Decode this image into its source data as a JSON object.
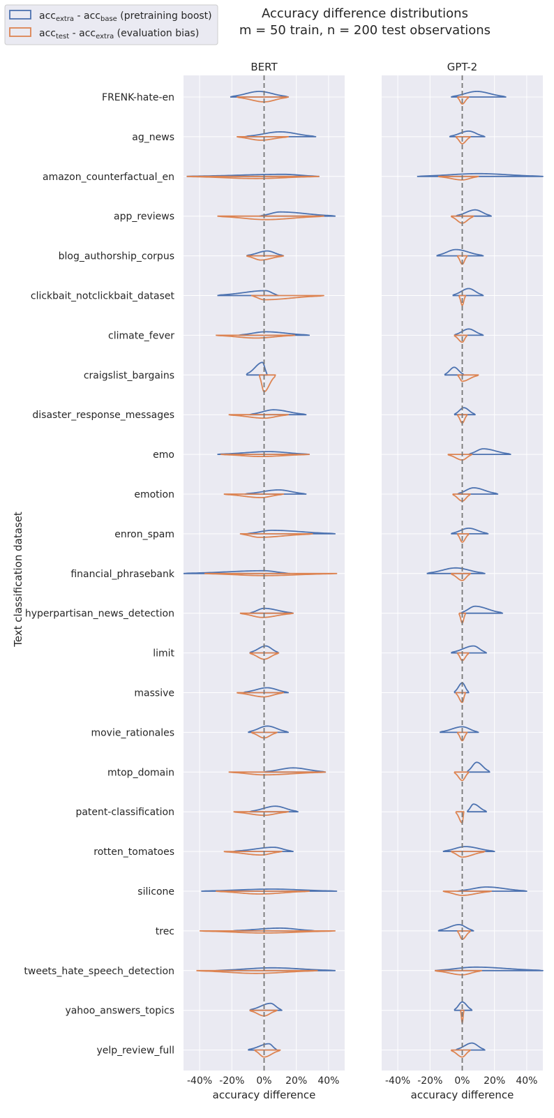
{
  "chart_data": {
    "type": "violin",
    "title_line1": "Accuracy difference distributions",
    "title_line2": "m = 50 train, n = 200 test observations",
    "ylabel": "Text classification dataset",
    "xlabel": "accuracy difference",
    "xlim": [
      -50,
      50
    ],
    "xticks": [
      -40,
      -20,
      0,
      20,
      40
    ],
    "xtick_labels": [
      "-40%",
      "-20%",
      "0%",
      "20%",
      "40%"
    ],
    "reference_line_x": 0,
    "colors": {
      "boost": "#4c72b0",
      "bias": "#dd8452",
      "panel_bg": "#eaeaf2",
      "grid": "#ffffff",
      "refline": "#777777"
    },
    "legend": {
      "boost": {
        "label_main": "acc",
        "sub1": "extra",
        "mid": " - acc",
        "sub2": "base",
        "tail": " (pretraining boost)"
      },
      "bias": {
        "label_main": "acc",
        "sub1": "test",
        "mid": " - acc",
        "sub2": "extra",
        "tail": " (evaluation bias)"
      },
      "position": "top-left"
    },
    "datasets": [
      "FRENK-hate-en",
      "ag_news",
      "amazon_counterfactual_en",
      "app_reviews",
      "blog_authorship_corpus",
      "clickbait_notclickbait_dataset",
      "climate_fever",
      "craigslist_bargains",
      "disaster_response_messages",
      "emo",
      "emotion",
      "enron_spam",
      "financial_phrasebank",
      "hyperpartisan_news_detection",
      "limit",
      "massive",
      "movie_rationales",
      "mtop_domain",
      "patent-classification",
      "rotten_tomatoes",
      "silicone",
      "trec",
      "tweets_hate_speech_detection",
      "yahoo_answers_topics",
      "yelp_review_full"
    ],
    "panels": [
      {
        "name": "BERT",
        "boost": [
          {
            "min": -21,
            "max": 15,
            "mode": -3,
            "h": 8
          },
          {
            "min": -12,
            "max": 32,
            "mode": 10,
            "h": 7
          },
          {
            "min": -48,
            "max": 34,
            "mode": 12,
            "h": 3
          },
          {
            "min": -3,
            "max": 44,
            "mode": 10,
            "h": 6
          },
          {
            "min": -11,
            "max": 12,
            "mode": 2,
            "h": 7
          },
          {
            "min": -29,
            "max": 9,
            "mode": 1,
            "h": 7
          },
          {
            "min": -16,
            "max": 28,
            "mode": 1,
            "h": 5
          },
          {
            "min": -11,
            "max": 2,
            "mode": -1,
            "h": 18
          },
          {
            "min": -9,
            "max": 26,
            "mode": 6,
            "h": 7
          },
          {
            "min": -29,
            "max": 28,
            "mode": 3,
            "h": 4
          },
          {
            "min": -12,
            "max": 26,
            "mode": 9,
            "h": 6
          },
          {
            "min": -11,
            "max": 44,
            "mode": 5,
            "h": 5
          },
          {
            "min": -50,
            "max": 16,
            "mode": 0,
            "h": 4
          },
          {
            "min": -9,
            "max": 18,
            "mode": 0,
            "h": 7
          },
          {
            "min": -9,
            "max": 9,
            "mode": 1,
            "h": 10
          },
          {
            "min": -13,
            "max": 15,
            "mode": 2,
            "h": 7
          },
          {
            "min": -10,
            "max": 15,
            "mode": 2,
            "h": 9
          },
          {
            "min": 0,
            "max": 38,
            "mode": 18,
            "h": 6
          },
          {
            "min": -9,
            "max": 21,
            "mode": 7,
            "h": 8
          },
          {
            "min": -19,
            "max": 18,
            "mode": 6,
            "h": 6
          },
          {
            "min": -39,
            "max": 45,
            "mode": 5,
            "h": 3
          },
          {
            "min": -20,
            "max": 32,
            "mode": 10,
            "h": 4
          },
          {
            "min": -30,
            "max": 44,
            "mode": 5,
            "h": 4
          },
          {
            "min": -9,
            "max": 11,
            "mode": 4,
            "h": 10
          },
          {
            "min": -10,
            "max": 8,
            "mode": 3,
            "h": 9
          }
        ],
        "bias": [
          {
            "min": -17,
            "max": 15,
            "mode": 0,
            "h": 7
          },
          {
            "min": -17,
            "max": 15,
            "mode": -2,
            "h": 5
          },
          {
            "min": -48,
            "max": 34,
            "mode": -5,
            "h": 3
          },
          {
            "min": -29,
            "max": 37,
            "mode": 1,
            "h": 5
          },
          {
            "min": -11,
            "max": 12,
            "mode": -2,
            "h": 6
          },
          {
            "min": -8,
            "max": 37,
            "mode": 0,
            "h": 6
          },
          {
            "min": -30,
            "max": 19,
            "mode": -5,
            "h": 4
          },
          {
            "min": -3,
            "max": 7,
            "mode": 0,
            "h": 24
          },
          {
            "min": -22,
            "max": 15,
            "mode": 0,
            "h": 5
          },
          {
            "min": -27,
            "max": 28,
            "mode": -2,
            "h": 3
          },
          {
            "min": -25,
            "max": 12,
            "mode": -2,
            "h": 5
          },
          {
            "min": -15,
            "max": 30,
            "mode": -3,
            "h": 5
          },
          {
            "min": -37,
            "max": 45,
            "mode": 0,
            "h": 3
          },
          {
            "min": -15,
            "max": 18,
            "mode": -1,
            "h": 6
          },
          {
            "min": -9,
            "max": 9,
            "mode": 0,
            "h": 9
          },
          {
            "min": -17,
            "max": 12,
            "mode": 0,
            "h": 6
          },
          {
            "min": -8,
            "max": 8,
            "mode": 0,
            "h": 8
          },
          {
            "min": -22,
            "max": 38,
            "mode": 0,
            "h": 4
          },
          {
            "min": -19,
            "max": 15,
            "mode": 0,
            "h": 5
          },
          {
            "min": -25,
            "max": 11,
            "mode": -2,
            "h": 5
          },
          {
            "min": -30,
            "max": 28,
            "mode": -3,
            "h": 4
          },
          {
            "min": -40,
            "max": 44,
            "mode": 0,
            "h": 3
          },
          {
            "min": -42,
            "max": 33,
            "mode": -5,
            "h": 4
          },
          {
            "min": -9,
            "max": 8,
            "mode": 0,
            "h": 8
          },
          {
            "min": -6,
            "max": 10,
            "mode": 0,
            "h": 10
          }
        ]
      },
      {
        "name": "GPT-2",
        "boost": [
          {
            "min": -7,
            "max": 27,
            "mode": 9,
            "h": 8
          },
          {
            "min": -8,
            "max": 14,
            "mode": 4,
            "h": 8
          },
          {
            "min": -28,
            "max": 50,
            "mode": 10,
            "h": 4
          },
          {
            "min": -4,
            "max": 18,
            "mode": 8,
            "h": 9
          },
          {
            "min": -16,
            "max": 13,
            "mode": -4,
            "h": 9
          },
          {
            "min": -6,
            "max": 13,
            "mode": 4,
            "h": 10
          },
          {
            "min": -5,
            "max": 13,
            "mode": 4,
            "h": 9
          },
          {
            "min": -11,
            "max": 1,
            "mode": -5,
            "h": 11
          },
          {
            "min": -5,
            "max": 8,
            "mode": 1,
            "h": 10
          },
          {
            "min": 4,
            "max": 30,
            "mode": 13,
            "h": 8
          },
          {
            "min": -3,
            "max": 22,
            "mode": 7,
            "h": 9
          },
          {
            "min": -7,
            "max": 16,
            "mode": 4,
            "h": 8
          },
          {
            "min": -22,
            "max": 14,
            "mode": -4,
            "h": 8
          },
          {
            "min": -1,
            "max": 25,
            "mode": 8,
            "h": 10
          },
          {
            "min": -7,
            "max": 15,
            "mode": 7,
            "h": 10
          },
          {
            "min": -5,
            "max": 4,
            "mode": 0,
            "h": 14
          },
          {
            "min": -14,
            "max": 10,
            "mode": 0,
            "h": 8
          },
          {
            "min": 3,
            "max": 17,
            "mode": 9,
            "h": 14
          },
          {
            "min": 3,
            "max": 15,
            "mode": 7,
            "h": 11
          },
          {
            "min": -12,
            "max": 20,
            "mode": 2,
            "h": 7
          },
          {
            "min": -3,
            "max": 40,
            "mode": 15,
            "h": 6
          },
          {
            "min": -15,
            "max": 7,
            "mode": -2,
            "h": 9
          },
          {
            "min": -17,
            "max": 50,
            "mode": 8,
            "h": 5
          },
          {
            "min": -5,
            "max": 6,
            "mode": 0,
            "h": 12
          },
          {
            "min": -4,
            "max": 14,
            "mode": 6,
            "h": 10
          }
        ],
        "bias": [
          {
            "min": -3,
            "max": 4,
            "mode": 0,
            "h": 10
          },
          {
            "min": -4,
            "max": 5,
            "mode": 0,
            "h": 10
          },
          {
            "min": -15,
            "max": 10,
            "mode": 0,
            "h": 5
          },
          {
            "min": -7,
            "max": 7,
            "mode": 0,
            "h": 10
          },
          {
            "min": -3,
            "max": 3,
            "mode": 0,
            "h": 12
          },
          {
            "min": -2,
            "max": 2,
            "mode": 0,
            "h": 14
          },
          {
            "min": -5,
            "max": 3,
            "mode": 0,
            "h": 10
          },
          {
            "min": -3,
            "max": 10,
            "mode": 0,
            "h": 9
          },
          {
            "min": -3,
            "max": 3,
            "mode": 0,
            "h": 12
          },
          {
            "min": -9,
            "max": 6,
            "mode": 0,
            "h": 8
          },
          {
            "min": -6,
            "max": 5,
            "mode": 0,
            "h": 10
          },
          {
            "min": -3,
            "max": 4,
            "mode": 0,
            "h": 12
          },
          {
            "min": -7,
            "max": 5,
            "mode": 0,
            "h": 10
          },
          {
            "min": -2,
            "max": 2,
            "mode": 0,
            "h": 14
          },
          {
            "min": -3,
            "max": 4,
            "mode": 0,
            "h": 11
          },
          {
            "min": -4,
            "max": 2,
            "mode": 0,
            "h": 14
          },
          {
            "min": -3,
            "max": 3,
            "mode": 0,
            "h": 12
          },
          {
            "min": -5,
            "max": 4,
            "mode": 0,
            "h": 12
          },
          {
            "min": -4,
            "max": 1,
            "mode": 0,
            "h": 16
          },
          {
            "min": -7,
            "max": 14,
            "mode": 0,
            "h": 8
          },
          {
            "min": -12,
            "max": 18,
            "mode": 0,
            "h": 6
          },
          {
            "min": -3,
            "max": 5,
            "mode": 0,
            "h": 12
          },
          {
            "min": -17,
            "max": 12,
            "mode": 0,
            "h": 6
          },
          {
            "min": -1,
            "max": 1,
            "mode": 0,
            "h": 18
          },
          {
            "min": -7,
            "max": 5,
            "mode": 0,
            "h": 10
          }
        ]
      }
    ]
  }
}
